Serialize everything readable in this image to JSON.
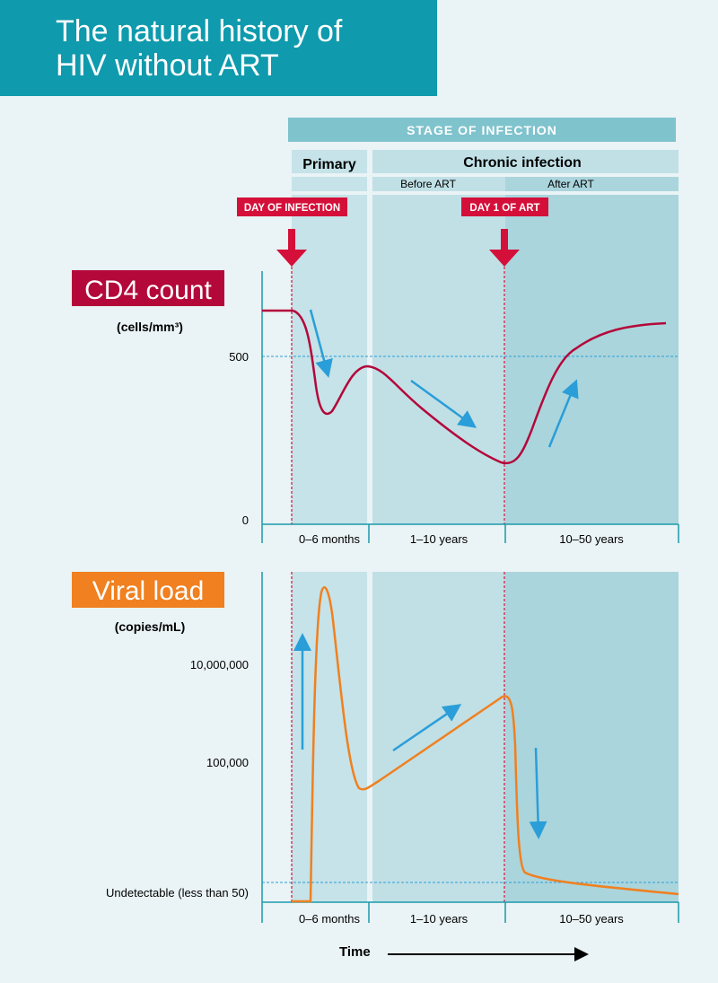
{
  "title_line1": "The natural history of",
  "title_line2": "HIV without ART",
  "stage_header": "STAGE OF INFECTION",
  "stages": {
    "primary": "Primary",
    "chronic": "Chronic infection",
    "before_art": "Before ART",
    "after_art": "After ART"
  },
  "markers": {
    "day_of_infection": "DAY OF INFECTION",
    "day1_art": "DAY 1 OF ART"
  },
  "cd4": {
    "label": "CD4 count",
    "unit": "(cells/mm³)",
    "ticks": [
      "500",
      "0"
    ]
  },
  "viral": {
    "label": "Viral load",
    "unit": "(copies/mL)",
    "ticks": [
      "10,000,000",
      "100,000",
      "Undetectable (less than 50)"
    ]
  },
  "periods": [
    "0–6 months",
    "1–10 years",
    "10–50 years"
  ],
  "time_label": "Time",
  "colors": {
    "header": "#0f9aad",
    "cd4": "#b4083a",
    "viral": "#f08020",
    "marker": "#d4103a",
    "trend_arrow": "#2a9ed8"
  }
}
